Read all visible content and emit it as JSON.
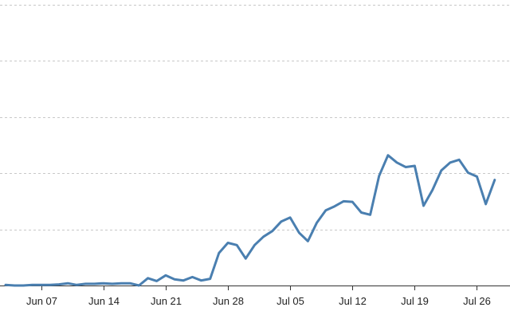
{
  "chart_data": {
    "type": "line",
    "title": "",
    "xlabel": "",
    "ylabel": "",
    "y_tick_labels_shown": false,
    "grid": "horizontal-dashed",
    "legend": "none",
    "x_start": "2020-06-03",
    "x_tick_labels": [
      "Jun 07",
      "Jun 14",
      "Jun 21",
      "Jun 28",
      "Jul 05",
      "Jul 12",
      "Jul 19",
      "Jul 26"
    ],
    "x_tick_dates": [
      "2020-06-07",
      "2020-06-14",
      "2020-06-21",
      "2020-06-28",
      "2020-07-05",
      "2020-07-12",
      "2020-07-19",
      "2020-07-26"
    ],
    "ylim": [
      0,
      5
    ],
    "y_gridlines": [
      1,
      2,
      3,
      4,
      5
    ],
    "colors": {
      "series": "#4a7fb0"
    },
    "series": [
      {
        "x": [
          "2020-06-03",
          "2020-06-04",
          "2020-06-05",
          "2020-06-06",
          "2020-06-07",
          "2020-06-08",
          "2020-06-09",
          "2020-06-10",
          "2020-06-11",
          "2020-06-12",
          "2020-06-13",
          "2020-06-14",
          "2020-06-15",
          "2020-06-16",
          "2020-06-17",
          "2020-06-18",
          "2020-06-19",
          "2020-06-20",
          "2020-06-21",
          "2020-06-22",
          "2020-06-23",
          "2020-06-24",
          "2020-06-25",
          "2020-06-26",
          "2020-06-27",
          "2020-06-28",
          "2020-06-29",
          "2020-06-30",
          "2020-07-01",
          "2020-07-02",
          "2020-07-03",
          "2020-07-04",
          "2020-07-05",
          "2020-07-06",
          "2020-07-07",
          "2020-07-08",
          "2020-07-09",
          "2020-07-10",
          "2020-07-11",
          "2020-07-12",
          "2020-07-13",
          "2020-07-14",
          "2020-07-15",
          "2020-07-16",
          "2020-07-17",
          "2020-07-18",
          "2020-07-19",
          "2020-07-20",
          "2020-07-21",
          "2020-07-22",
          "2020-07-23",
          "2020-07-24",
          "2020-07-25",
          "2020-07-26",
          "2020-07-27",
          "2020-07-28"
        ],
        "values": [
          0.01,
          0.0,
          0.0,
          0.01,
          0.01,
          0.01,
          0.02,
          0.04,
          0.01,
          0.03,
          0.03,
          0.04,
          0.03,
          0.04,
          0.04,
          0.0,
          0.13,
          0.08,
          0.18,
          0.11,
          0.09,
          0.15,
          0.09,
          0.12,
          0.58,
          0.76,
          0.72,
          0.48,
          0.72,
          0.87,
          0.97,
          1.14,
          1.21,
          0.94,
          0.79,
          1.12,
          1.34,
          1.41,
          1.5,
          1.49,
          1.3,
          1.26,
          1.95,
          2.32,
          2.19,
          2.11,
          2.13,
          1.42,
          1.7,
          2.05,
          2.19,
          2.24,
          2.01,
          1.94,
          1.45,
          1.88
        ]
      }
    ]
  }
}
